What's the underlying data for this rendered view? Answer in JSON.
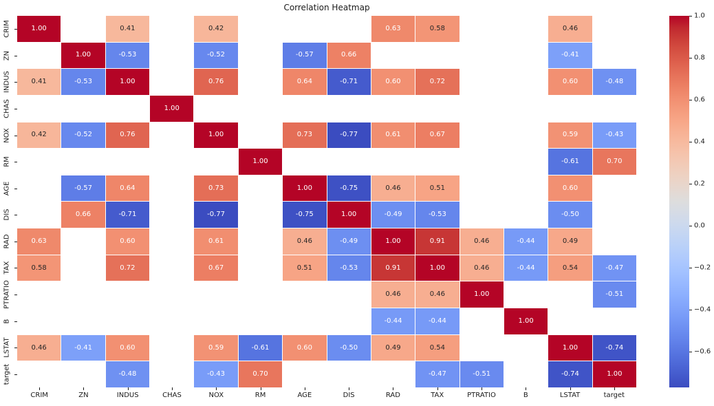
{
  "title": "Correlation Heatmap",
  "chart_data": {
    "type": "heatmap",
    "title": "Correlation Heatmap",
    "variables": [
      "CRIM",
      "ZN",
      "INDUS",
      "CHAS",
      "NOX",
      "RM",
      "AGE",
      "DIS",
      "RAD",
      "TAX",
      "PTRATIO",
      "B",
      "LSTAT",
      "target"
    ],
    "matrix": [
      [
        1.0,
        null,
        0.41,
        null,
        0.42,
        null,
        null,
        null,
        0.63,
        0.58,
        null,
        null,
        0.46,
        null
      ],
      [
        null,
        1.0,
        -0.53,
        null,
        -0.52,
        null,
        -0.57,
        0.66,
        null,
        null,
        null,
        null,
        -0.41,
        null
      ],
      [
        0.41,
        -0.53,
        1.0,
        null,
        0.76,
        null,
        0.64,
        -0.71,
        0.6,
        0.72,
        null,
        null,
        0.6,
        -0.48
      ],
      [
        null,
        null,
        null,
        1.0,
        null,
        null,
        null,
        null,
        null,
        null,
        null,
        null,
        null,
        null
      ],
      [
        0.42,
        -0.52,
        0.76,
        null,
        1.0,
        null,
        0.73,
        -0.77,
        0.61,
        0.67,
        null,
        null,
        0.59,
        -0.43
      ],
      [
        null,
        null,
        null,
        null,
        null,
        1.0,
        null,
        null,
        null,
        null,
        null,
        null,
        -0.61,
        0.7
      ],
      [
        null,
        -0.57,
        0.64,
        null,
        0.73,
        null,
        1.0,
        -0.75,
        0.46,
        0.51,
        null,
        null,
        0.6,
        null
      ],
      [
        null,
        0.66,
        -0.71,
        null,
        -0.77,
        null,
        -0.75,
        1.0,
        -0.49,
        -0.53,
        null,
        null,
        -0.5,
        null
      ],
      [
        0.63,
        null,
        0.6,
        null,
        0.61,
        null,
        0.46,
        -0.49,
        1.0,
        0.91,
        0.46,
        -0.44,
        0.49,
        null
      ],
      [
        0.58,
        null,
        0.72,
        null,
        0.67,
        null,
        0.51,
        -0.53,
        0.91,
        1.0,
        0.46,
        -0.44,
        0.54,
        -0.47
      ],
      [
        null,
        null,
        null,
        null,
        null,
        null,
        null,
        null,
        0.46,
        0.46,
        1.0,
        null,
        null,
        -0.51
      ],
      [
        null,
        null,
        null,
        null,
        null,
        null,
        null,
        null,
        -0.44,
        -0.44,
        null,
        1.0,
        null,
        null
      ],
      [
        0.46,
        -0.41,
        0.6,
        null,
        0.59,
        -0.61,
        0.6,
        -0.5,
        0.49,
        0.54,
        null,
        null,
        1.0,
        -0.74
      ],
      [
        null,
        null,
        -0.48,
        null,
        -0.43,
        0.7,
        null,
        null,
        null,
        -0.47,
        -0.51,
        null,
        -0.74,
        1.0
      ]
    ],
    "value_format_decimals": 2,
    "vmin": -0.77,
    "vmax": 1.0,
    "colormap": "coolwarm",
    "colormap_stops_rgb": [
      [
        59,
        76,
        192
      ],
      [
        68,
        90,
        204
      ],
      [
        77,
        104,
        215
      ],
      [
        87,
        117,
        225
      ],
      [
        98,
        130,
        234
      ],
      [
        108,
        142,
        241
      ],
      [
        119,
        154,
        247
      ],
      [
        130,
        165,
        251
      ],
      [
        141,
        176,
        254
      ],
      [
        152,
        185,
        255
      ],
      [
        163,
        194,
        255
      ],
      [
        174,
        201,
        253
      ],
      [
        184,
        208,
        249
      ],
      [
        194,
        213,
        244
      ],
      [
        204,
        217,
        238
      ],
      [
        213,
        219,
        230
      ],
      [
        221,
        221,
        221
      ],
      [
        229,
        216,
        209
      ],
      [
        236,
        211,
        197
      ],
      [
        241,
        204,
        185
      ],
      [
        245,
        196,
        173
      ],
      [
        247,
        187,
        160
      ],
      [
        247,
        177,
        148
      ],
      [
        247,
        166,
        135
      ],
      [
        244,
        154,
        123
      ],
      [
        241,
        141,
        111
      ],
      [
        236,
        127,
        99
      ],
      [
        229,
        112,
        88
      ],
      [
        222,
        96,
        77
      ],
      [
        213,
        80,
        66
      ],
      [
        203,
        62,
        56
      ],
      [
        192,
        40,
        47
      ],
      [
        180,
        4,
        38
      ]
    ],
    "colorbar": {
      "position": "right",
      "ticks": [
        {
          "label": "1.0",
          "value": 1.0
        },
        {
          "label": "0.8",
          "value": 0.8
        },
        {
          "label": "0.6",
          "value": 0.6
        },
        {
          "label": "0.4",
          "value": 0.4
        },
        {
          "label": "0.2",
          "value": 0.2
        },
        {
          "label": "0.0",
          "value": 0.0
        },
        {
          "label": "−0.2",
          "value": -0.2
        },
        {
          "label": "−0.4",
          "value": -0.4
        },
        {
          "label": "−0.6",
          "value": -0.6
        }
      ]
    },
    "annotation_text_dark": "#262626",
    "annotation_text_light": "#ffffff",
    "background": "#ffffff",
    "grid_line_color": "#ffffff"
  }
}
